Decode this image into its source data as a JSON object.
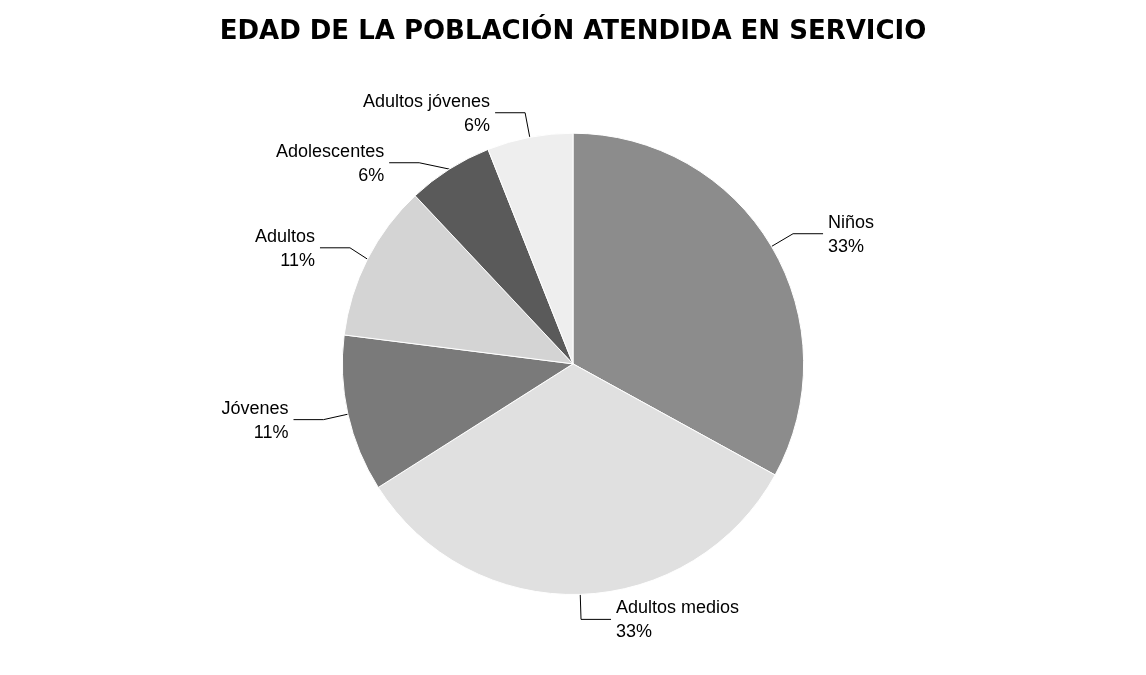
{
  "chart_data": {
    "type": "pie",
    "title": "EDAD DE LA POBLACIÓN ATENDIDA EN SERVICIO",
    "categories": [
      "Niños",
      "Adultos medios",
      "Jóvenes",
      "Adultos",
      "Adolescentes",
      "Adultos jóvenes"
    ],
    "values": [
      33,
      33,
      11,
      11,
      6,
      6
    ],
    "colors": [
      "#8c8c8c",
      "#e0e0e0",
      "#7a7a7a",
      "#d4d4d4",
      "#5a5a5a",
      "#eeeeee"
    ],
    "value_labels": [
      "33%",
      "33%",
      "11%",
      "11%",
      "6%",
      "6%"
    ],
    "legend": false
  }
}
